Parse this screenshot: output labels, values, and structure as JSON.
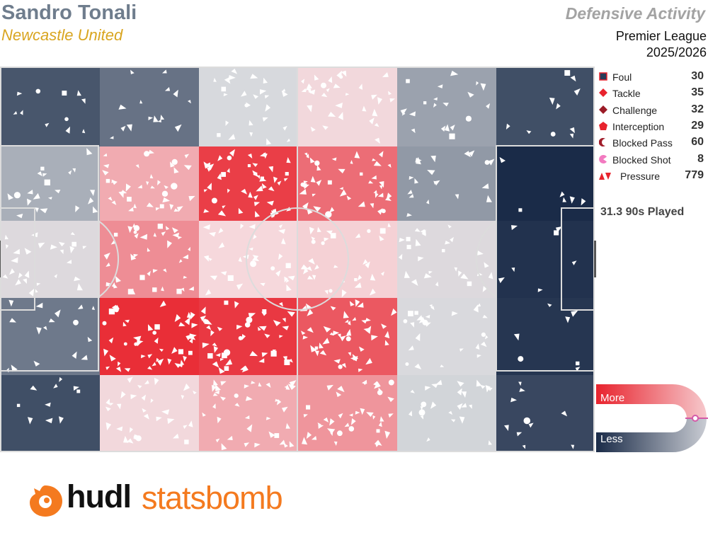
{
  "header": {
    "player": "Sandro Tonali",
    "team": "Newcastle United",
    "title": "Defensive Activity",
    "competition": "Premier League",
    "season": "2025/2026"
  },
  "legend": [
    {
      "label": "Foul",
      "count": "30",
      "icon": "square-marker",
      "color": "#2a3b58"
    },
    {
      "label": "Tackle",
      "count": "35",
      "icon": "diamond-marker",
      "color": "#e8232d"
    },
    {
      "label": "Challenge",
      "count": "32",
      "icon": "diamond-marker",
      "color": "#9b1b26"
    },
    {
      "label": "Interception",
      "count": "29",
      "icon": "pentagon-marker",
      "color": "#e8232d"
    },
    {
      "label": "Blocked Pass",
      "count": "60",
      "icon": "crescent-marker",
      "color": "#a01d2a"
    },
    {
      "label": "Blocked Shot",
      "count": "8",
      "icon": "pacman-marker",
      "color": "#f27ac0"
    },
    {
      "label": "Pressure",
      "count": "779",
      "icon": "triangle-marker",
      "color": "#e8232d"
    }
  ],
  "nineties_played": "31.3 90s Played",
  "scale": {
    "more": "More",
    "less": "Less",
    "high_color": "#e8232d",
    "low_color": "#1a2b48"
  },
  "brand": {
    "part1": "hudl",
    "part2": "statsbomb",
    "accent": "#f47a1f"
  },
  "chart_data": {
    "type": "heatmap",
    "title": "Defensive Activity",
    "pitch_grid": {
      "columns": 6,
      "rows": 5
    },
    "intensity_note": "relative activity per zone, 0 = least (dark blue), 1 = most (red)",
    "zones": [
      [
        0.12,
        0.2,
        0.45,
        0.58,
        0.32,
        0.1
      ],
      [
        0.35,
        0.72,
        0.95,
        0.86,
        0.3,
        0.0
      ],
      [
        0.48,
        0.8,
        0.6,
        0.62,
        0.48,
        0.02
      ],
      [
        0.22,
        0.98,
        0.96,
        0.9,
        0.46,
        0.03
      ],
      [
        0.1,
        0.58,
        0.72,
        0.78,
        0.44,
        0.08
      ]
    ]
  }
}
